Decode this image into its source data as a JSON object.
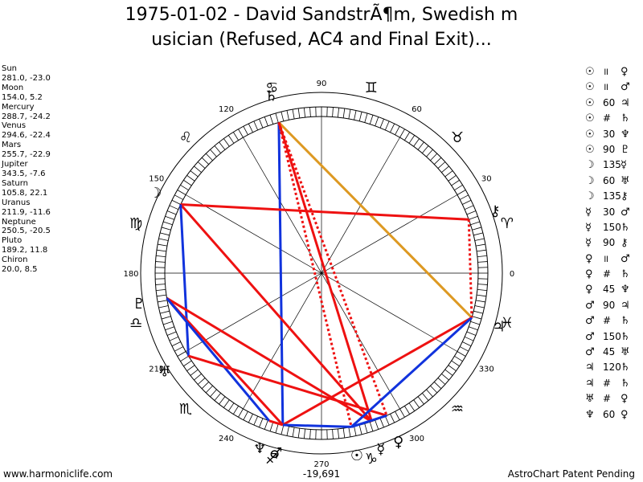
{
  "title": {
    "line1": "1975-01-02 - David SandstrÃ¶m, Swedish m",
    "line2": "usician (Refused, AC4 and Final Exit)..."
  },
  "planets": [
    {
      "name": "Sun",
      "values": "281.0, -23.0",
      "symbol": "☉"
    },
    {
      "name": "Moon",
      "values": "154.0, 5.2",
      "symbol": "☽"
    },
    {
      "name": "Mercury",
      "values": "288.7, -24.2",
      "symbol": "☿"
    },
    {
      "name": "Venus",
      "values": "294.6, -22.4",
      "symbol": "♀"
    },
    {
      "name": "Mars",
      "values": "255.7, -22.9",
      "symbol": "♂"
    },
    {
      "name": "Jupiter",
      "values": "343.5, -7.6",
      "symbol": "♃"
    },
    {
      "name": "Saturn",
      "values": "105.8, 22.1",
      "symbol": "♄"
    },
    {
      "name": "Uranus",
      "values": "211.9, -11.6",
      "symbol": "♅"
    },
    {
      "name": "Neptune",
      "values": "250.5, -20.5",
      "symbol": "♆"
    },
    {
      "name": "Pluto",
      "values": "189.2, 11.8",
      "symbol": "♇"
    },
    {
      "name": "Chiron",
      "values": "20.0, 8.5",
      "symbol": "⚷"
    }
  ],
  "aspects": [
    {
      "p1": "☉",
      "asp": "॥",
      "p2": "♀"
    },
    {
      "p1": "☉",
      "asp": "॥",
      "p2": "♂"
    },
    {
      "p1": "☉",
      "asp": "60",
      "p2": "♃"
    },
    {
      "p1": "☉",
      "asp": "#",
      "p2": "♄"
    },
    {
      "p1": "☉",
      "asp": "30",
      "p2": "♆"
    },
    {
      "p1": "☉",
      "asp": "90",
      "p2": "♇"
    },
    {
      "p1": "☽",
      "asp": "135",
      "p2": "☿"
    },
    {
      "p1": "☽",
      "asp": "60",
      "p2": "♅"
    },
    {
      "p1": "☽",
      "asp": "135",
      "p2": "⚷"
    },
    {
      "p1": "☿",
      "asp": "30",
      "p2": "♂"
    },
    {
      "p1": "☿",
      "asp": "150",
      "p2": "♄"
    },
    {
      "p1": "☿",
      "asp": "90",
      "p2": "⚷"
    },
    {
      "p1": "♀",
      "asp": "॥",
      "p2": "♂"
    },
    {
      "p1": "♀",
      "asp": "#",
      "p2": "♄"
    },
    {
      "p1": "♀",
      "asp": "45",
      "p2": "♆"
    },
    {
      "p1": "♂",
      "asp": "90",
      "p2": "♃"
    },
    {
      "p1": "♂",
      "asp": "#",
      "p2": "♄"
    },
    {
      "p1": "♂",
      "asp": "150",
      "p2": "♄"
    },
    {
      "p1": "♂",
      "asp": "45",
      "p2": "♅"
    },
    {
      "p1": "♃",
      "asp": "120",
      "p2": "♄"
    },
    {
      "p1": "♃",
      "asp": "#",
      "p2": "♄"
    },
    {
      "p1": "♅",
      "asp": "#",
      "p2": "♀"
    },
    {
      "p1": "♆",
      "asp": "60",
      "p2": "♀"
    }
  ],
  "wheel": {
    "degree_labels": [
      "0",
      "30",
      "60",
      "90",
      "120",
      "150",
      "180",
      "210",
      "240",
      "270",
      "300",
      "330"
    ],
    "zodiac_signs": [
      "♈",
      "♉",
      "♊",
      "♋",
      "♌",
      "♍",
      "♎",
      "♏",
      "♐",
      "♑",
      "♒",
      "♓"
    ],
    "bottom_label": "-19,691"
  },
  "colors": {
    "red": "#ee1111",
    "blue": "#1133dd",
    "orange": "#dd9922"
  },
  "footer": {
    "left": "www.harmoniclife.com",
    "right": "AstroChart Patent Pending"
  }
}
